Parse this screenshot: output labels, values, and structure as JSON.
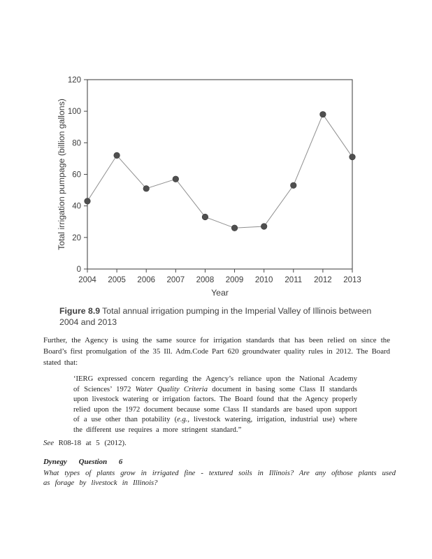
{
  "chart_data": {
    "type": "line",
    "title": "",
    "x": [
      "2004",
      "2005",
      "2006",
      "2007",
      "2008",
      "2009",
      "2010",
      "2011",
      "2012",
      "2013"
    ],
    "values": [
      43,
      72,
      51,
      57,
      33,
      26,
      27,
      53,
      98,
      71
    ],
    "xlabel": "Year",
    "ylabel": "Total irrigation pumpage (billion gallons)",
    "ylim": [
      0,
      120
    ],
    "yticks": [
      0,
      20,
      40,
      60,
      80,
      100,
      120
    ],
    "grid": false,
    "legend": "none",
    "frame": "full-box",
    "marker": "filled-circle",
    "line_color": "#8f8f8f",
    "marker_color": "#4f4f4f",
    "axis_color": "#4a4a4a"
  },
  "figure": {
    "caption_label": "Figure 8.9",
    "caption_text": "Total annual irrigation pumping in the Imperial Valley of Illinois between 2004 and 2013"
  },
  "paragraphs": {
    "further": "Further, the Agency is using the same source for irrigation standards that has been relied on since the Board’s first promulgation of the 35 Ill. Adm.Code Part 620 groundwater quality rules in 2012. The Board stated that:"
  },
  "blockquote": {
    "part1": "‘IERG expressed concern regarding the Agency’s reliance upon the National Academy of Sciences’ 1972 ",
    "italic1": "Water Quality Criteria",
    "part2": " document in basing some Class II standards upon livestock watering or irrigation factors. The Board found that the Agency properly relied upon the 1972 document because some Class II standards are based upon support of a use other than potability (",
    "italic2": "e.g.",
    "part3": ", livestock watering, irrigation, industrial use) where the different use requires a more stringent standard.”"
  },
  "citation": {
    "see": "See",
    "rest": " R08-18  at 5 (2012)."
  },
  "question": {
    "heading": "Dynegy Question 6",
    "text": "What types of plants grow in irrigated fine - textured soils in Illinois? Are any ofthose plants used as forage by livestock in Illinois?"
  }
}
